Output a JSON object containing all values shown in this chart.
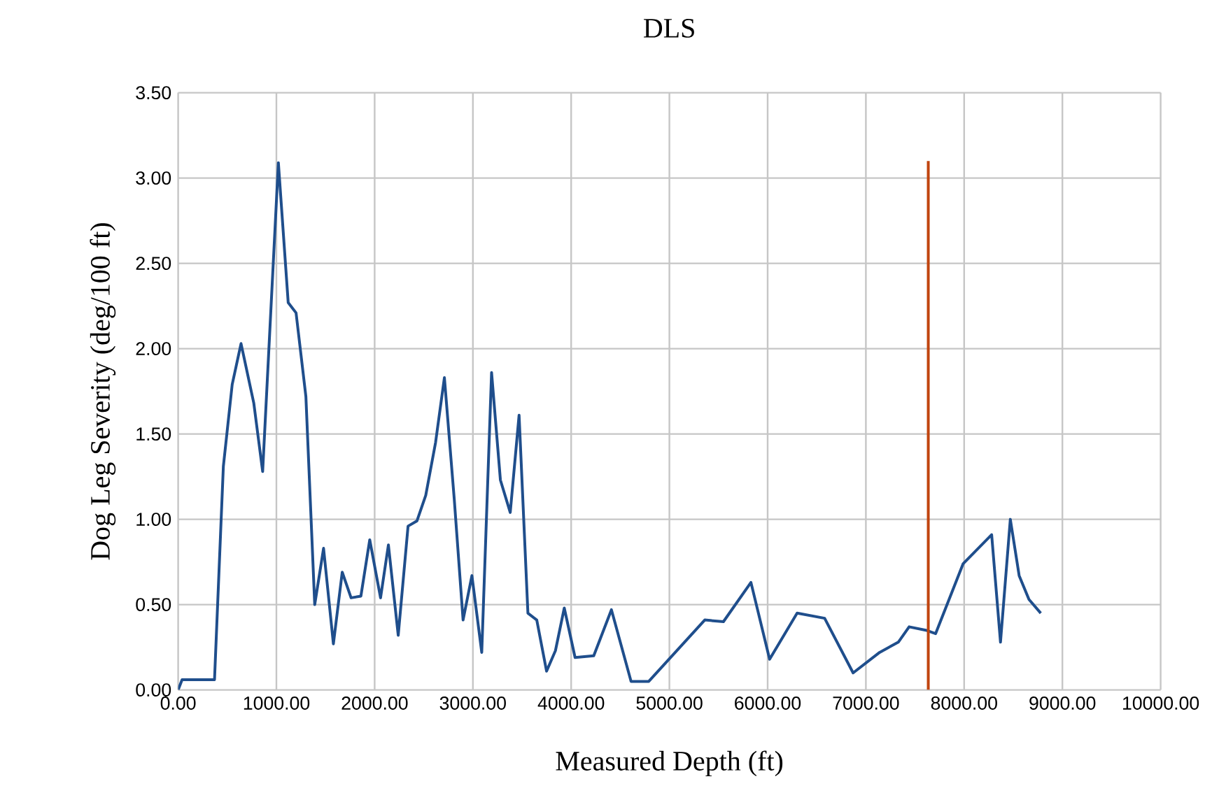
{
  "chart_data": {
    "type": "line",
    "title": "DLS",
    "xlabel": "Measured Depth (ft)",
    "ylabel": "Dog Leg Severity (deg/100 ft)",
    "xlim": [
      0,
      10000
    ],
    "ylim": [
      0,
      3.5
    ],
    "xticks": [
      {
        "value": 0,
        "label": "0.00"
      },
      {
        "value": 1000,
        "label": "1000.00"
      },
      {
        "value": 2000,
        "label": "2000.00"
      },
      {
        "value": 3000,
        "label": "3000.00"
      },
      {
        "value": 4000,
        "label": "4000.00"
      },
      {
        "value": 5000,
        "label": "5000.00"
      },
      {
        "value": 6000,
        "label": "6000.00"
      },
      {
        "value": 7000,
        "label": "7000.00"
      },
      {
        "value": 8000,
        "label": "8000.00"
      },
      {
        "value": 9000,
        "label": "9000.00"
      },
      {
        "value": 10000,
        "label": "10000.00"
      }
    ],
    "yticks": [
      {
        "value": 0,
        "label": "0.00"
      },
      {
        "value": 0.5,
        "label": "0.50"
      },
      {
        "value": 1,
        "label": "1.00"
      },
      {
        "value": 1.5,
        "label": "1.50"
      },
      {
        "value": 2,
        "label": "2.00"
      },
      {
        "value": 2.5,
        "label": "2.50"
      },
      {
        "value": 3,
        "label": "3.00"
      },
      {
        "value": 3.5,
        "label": "3.50"
      }
    ],
    "grid": true,
    "legend": false,
    "marker": "none",
    "line_style": "solid",
    "series": [
      {
        "color": "#1f4e8c",
        "x": [
          0,
          40,
          370,
          460,
          550,
          640,
          770,
          860,
          1020,
          1120,
          1200,
          1300,
          1390,
          1480,
          1580,
          1670,
          1760,
          1860,
          1950,
          2060,
          2140,
          2240,
          2340,
          2430,
          2520,
          2620,
          2710,
          2810,
          2900,
          2990,
          3090,
          3190,
          3280,
          3380,
          3470,
          3560,
          3650,
          3750,
          3840,
          3930,
          4040,
          4230,
          4410,
          4610,
          4790,
          5360,
          5550,
          5830,
          6020,
          6300,
          6580,
          6870,
          7140,
          7330,
          7440,
          7610,
          7710,
          7990,
          8280,
          8370,
          8470,
          8560,
          8660,
          8780
        ],
        "values": [
          0,
          0.06,
          0.06,
          1.31,
          1.79,
          2.03,
          1.68,
          1.28,
          3.09,
          2.27,
          2.21,
          1.72,
          0.5,
          0.83,
          0.27,
          0.69,
          0.54,
          0.55,
          0.88,
          0.54,
          0.85,
          0.32,
          0.96,
          0.99,
          1.14,
          1.45,
          1.83,
          1.12,
          0.41,
          0.67,
          0.22,
          1.86,
          1.23,
          1.04,
          1.61,
          0.45,
          0.41,
          0.11,
          0.23,
          0.48,
          0.19,
          0.2,
          0.47,
          0.05,
          0.05,
          0.41,
          0.4,
          0.63,
          0.18,
          0.45,
          0.42,
          0.1,
          0.22,
          0.28,
          0.37,
          0.35,
          0.33,
          0.74,
          0.91,
          0.28,
          1.0,
          0.67,
          0.53,
          0.45
        ]
      },
      {
        "color": "#c0440f",
        "x": [
          7635,
          7635
        ],
        "values": [
          0,
          3.1
        ]
      }
    ]
  }
}
